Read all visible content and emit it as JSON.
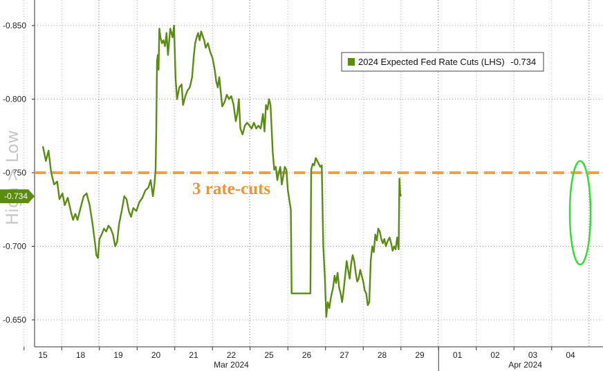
{
  "chart_data": {
    "type": "line",
    "y_axis_note": "High > Low",
    "ylim": [
      -0.64,
      -0.86
    ],
    "y_ticks": [
      "-0.850",
      "-0.800",
      "-0.750",
      "-0.700",
      "-0.650"
    ],
    "x_day_labels": [
      "15",
      "18",
      "19",
      "20",
      "21",
      "22",
      "25",
      "26",
      "27",
      "28",
      "29",
      "01",
      "02",
      "03",
      "04"
    ],
    "x_month_labels": [
      "Mar 2024",
      "Apr 2024"
    ],
    "series": [
      {
        "name": "2024 Expected Fed Rate Cuts (LHS)",
        "last_value": "-0.734",
        "color": "#5a8c12",
        "points": [
          [
            0.0,
            -0.768
          ],
          [
            0.08,
            -0.758
          ],
          [
            0.15,
            -0.765
          ],
          [
            0.22,
            -0.75
          ],
          [
            0.3,
            -0.742
          ],
          [
            0.38,
            -0.744
          ],
          [
            0.44,
            -0.732
          ],
          [
            0.52,
            -0.736
          ],
          [
            0.58,
            -0.728
          ],
          [
            0.66,
            -0.733
          ],
          [
            0.74,
            -0.724
          ],
          [
            0.8,
            -0.718
          ],
          [
            0.86,
            -0.722
          ],
          [
            0.92,
            -0.718
          ],
          [
            1.0,
            -0.726
          ],
          [
            1.08,
            -0.734
          ],
          [
            1.16,
            -0.736
          ],
          [
            1.24,
            -0.728
          ],
          [
            1.32,
            -0.715
          ],
          [
            1.38,
            -0.703
          ],
          [
            1.42,
            -0.694
          ],
          [
            1.46,
            -0.692
          ],
          [
            1.5,
            -0.705
          ],
          [
            1.56,
            -0.708
          ],
          [
            1.62,
            -0.712
          ],
          [
            1.68,
            -0.71
          ],
          [
            1.74,
            -0.714
          ],
          [
            1.8,
            -0.712
          ],
          [
            1.86,
            -0.708
          ],
          [
            1.92,
            -0.7
          ],
          [
            1.97,
            -0.703
          ],
          [
            2.02,
            -0.715
          ],
          [
            2.1,
            -0.725
          ],
          [
            2.16,
            -0.734
          ],
          [
            2.22,
            -0.732
          ],
          [
            2.28,
            -0.724
          ],
          [
            2.34,
            -0.72
          ],
          [
            2.4,
            -0.726
          ],
          [
            2.48,
            -0.724
          ],
          [
            2.56,
            -0.73
          ],
          [
            2.64,
            -0.733
          ],
          [
            2.72,
            -0.738
          ],
          [
            2.8,
            -0.74
          ],
          [
            2.86,
            -0.745
          ],
          [
            2.92,
            -0.734
          ],
          [
            2.96,
            -0.742
          ],
          [
            2.99,
            -0.752
          ],
          [
            3.01,
            -0.78
          ],
          [
            3.03,
            -0.826
          ],
          [
            3.05,
            -0.83
          ],
          [
            3.07,
            -0.82
          ],
          [
            3.09,
            -0.848
          ],
          [
            3.12,
            -0.842
          ],
          [
            3.16,
            -0.838
          ],
          [
            3.2,
            -0.84
          ],
          [
            3.24,
            -0.836
          ],
          [
            3.28,
            -0.845
          ],
          [
            3.32,
            -0.83
          ],
          [
            3.38,
            -0.848
          ],
          [
            3.44,
            -0.842
          ],
          [
            3.48,
            -0.85
          ],
          [
            3.52,
            -0.815
          ],
          [
            3.56,
            -0.8
          ],
          [
            3.62,
            -0.808
          ],
          [
            3.68,
            -0.81
          ],
          [
            3.72,
            -0.796
          ],
          [
            3.78,
            -0.802
          ],
          [
            3.84,
            -0.806
          ],
          [
            3.9,
            -0.808
          ],
          [
            3.96,
            -0.815
          ],
          [
            4.0,
            -0.828
          ],
          [
            4.04,
            -0.838
          ],
          [
            4.08,
            -0.842
          ],
          [
            4.12,
            -0.845
          ],
          [
            4.16,
            -0.84
          ],
          [
            4.2,
            -0.846
          ],
          [
            4.24,
            -0.843
          ],
          [
            4.28,
            -0.84
          ],
          [
            4.32,
            -0.835
          ],
          [
            4.38,
            -0.838
          ],
          [
            4.44,
            -0.832
          ],
          [
            4.5,
            -0.828
          ],
          [
            4.56,
            -0.82
          ],
          [
            4.6,
            -0.812
          ],
          [
            4.64,
            -0.808
          ],
          [
            4.68,
            -0.815
          ],
          [
            4.72,
            -0.805
          ],
          [
            4.76,
            -0.795
          ],
          [
            4.82,
            -0.798
          ],
          [
            4.88,
            -0.803
          ],
          [
            4.94,
            -0.8
          ],
          [
            5.0,
            -0.802
          ],
          [
            5.06,
            -0.796
          ],
          [
            5.12,
            -0.785
          ],
          [
            5.16,
            -0.79
          ],
          [
            5.2,
            -0.8
          ],
          [
            5.24,
            -0.78
          ],
          [
            5.3,
            -0.776
          ],
          [
            5.36,
            -0.782
          ],
          [
            5.42,
            -0.784
          ],
          [
            5.48,
            -0.782
          ],
          [
            5.54,
            -0.78
          ],
          [
            5.6,
            -0.784
          ],
          [
            5.66,
            -0.78
          ],
          [
            5.72,
            -0.782
          ],
          [
            5.78,
            -0.78
          ],
          [
            5.84,
            -0.79
          ],
          [
            5.88,
            -0.778
          ],
          [
            5.92,
            -0.796
          ],
          [
            5.96,
            -0.793
          ],
          [
            6.0,
            -0.8
          ],
          [
            6.04,
            -0.796
          ],
          [
            6.1,
            -0.764
          ],
          [
            6.14,
            -0.752
          ],
          [
            6.18,
            -0.754
          ],
          [
            6.22,
            -0.745
          ],
          [
            6.26,
            -0.75
          ],
          [
            6.3,
            -0.754
          ],
          [
            6.34,
            -0.742
          ],
          [
            6.38,
            -0.748
          ],
          [
            6.42,
            -0.754
          ],
          [
            6.46,
            -0.752
          ],
          [
            6.5,
            -0.738
          ],
          [
            6.56,
            -0.728
          ],
          [
            6.58,
            -0.725
          ],
          [
            6.6,
            -0.668
          ],
          [
            7.1,
            -0.668
          ],
          [
            7.12,
            -0.752
          ],
          [
            7.16,
            -0.756
          ],
          [
            7.2,
            -0.755
          ],
          [
            7.24,
            -0.76
          ],
          [
            7.28,
            -0.758
          ],
          [
            7.32,
            -0.756
          ],
          [
            7.36,
            -0.754
          ],
          [
            7.4,
            -0.755
          ],
          [
            7.44,
            -0.7
          ],
          [
            7.48,
            -0.68
          ],
          [
            7.52,
            -0.652
          ],
          [
            7.56,
            -0.662
          ],
          [
            7.6,
            -0.658
          ],
          [
            7.64,
            -0.665
          ],
          [
            7.7,
            -0.672
          ],
          [
            7.74,
            -0.68
          ],
          [
            7.78,
            -0.675
          ],
          [
            7.82,
            -0.682
          ],
          [
            7.86,
            -0.672
          ],
          [
            7.9,
            -0.668
          ],
          [
            7.94,
            -0.662
          ],
          [
            7.98,
            -0.67
          ],
          [
            8.02,
            -0.68
          ],
          [
            8.06,
            -0.69
          ],
          [
            8.1,
            -0.684
          ],
          [
            8.14,
            -0.678
          ],
          [
            8.18,
            -0.688
          ],
          [
            8.22,
            -0.694
          ],
          [
            8.26,
            -0.69
          ],
          [
            8.3,
            -0.682
          ],
          [
            8.34,
            -0.676
          ],
          [
            8.38,
            -0.678
          ],
          [
            8.42,
            -0.684
          ],
          [
            8.46,
            -0.68
          ],
          [
            8.5,
            -0.676
          ],
          [
            8.54,
            -0.67
          ],
          [
            8.58,
            -0.668
          ],
          [
            8.62,
            -0.66
          ],
          [
            8.66,
            -0.662
          ],
          [
            8.7,
            -0.69
          ],
          [
            8.74,
            -0.7
          ],
          [
            8.78,
            -0.696
          ],
          [
            8.82,
            -0.708
          ],
          [
            8.86,
            -0.704
          ],
          [
            8.9,
            -0.712
          ],
          [
            8.94,
            -0.71
          ],
          [
            8.98,
            -0.705
          ],
          [
            9.02,
            -0.702
          ],
          [
            9.06,
            -0.705
          ],
          [
            9.1,
            -0.7
          ],
          [
            9.14,
            -0.703
          ],
          [
            9.2,
            -0.706
          ],
          [
            9.24,
            -0.702
          ],
          [
            9.28,
            -0.697
          ],
          [
            9.32,
            -0.7
          ],
          [
            9.36,
            -0.698
          ],
          [
            9.4,
            -0.706
          ],
          [
            9.44,
            -0.698
          ],
          [
            9.46,
            -0.746
          ],
          [
            9.48,
            -0.736
          ],
          [
            9.5,
            -0.734
          ]
        ]
      }
    ],
    "reference_lines": [
      {
        "label": "3 rate-cuts",
        "value": -0.75,
        "color": "#f2a03d",
        "style": "dashed"
      }
    ],
    "highlight": {
      "shape": "ellipse",
      "color": "#33dd33"
    },
    "legend_position": "top-right",
    "grid": true
  }
}
